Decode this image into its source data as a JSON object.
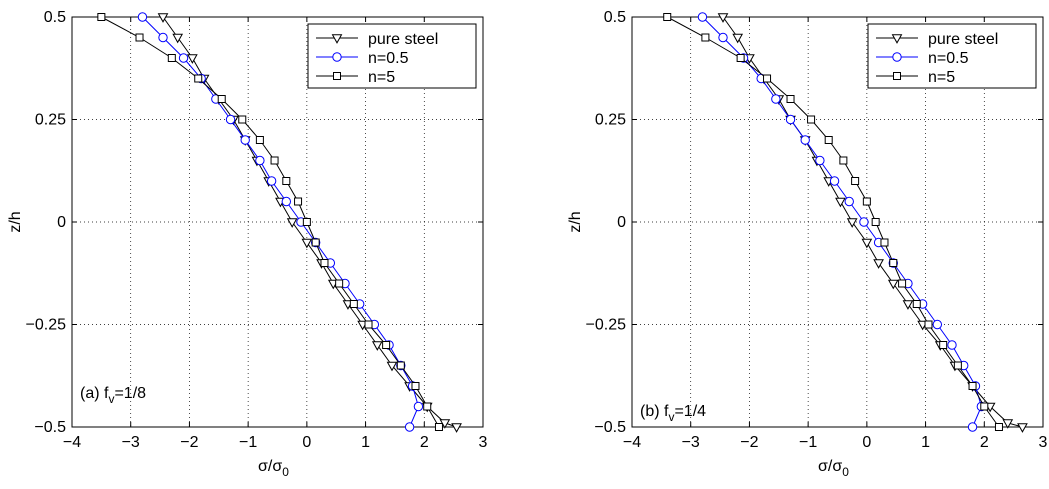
{
  "chart_data": [
    {
      "type": "line",
      "panel": "a",
      "annotation_main": "(a) f",
      "annotation_sub": "v",
      "annotation_tail": "=1/8",
      "xlabel_main": "σ/σ",
      "xlabel_sub": "0",
      "ylabel": "z/h",
      "xlim": [
        -4,
        3
      ],
      "ylim": [
        -0.5,
        0.5
      ],
      "xticks": [
        "−4",
        "−3",
        "−2",
        "−1",
        "0",
        "1",
        "2",
        "3"
      ],
      "yticks": [
        "−0.5",
        "−0.25",
        "0",
        "0.25",
        "0.5"
      ],
      "grid": true,
      "legend_position": "top-right",
      "series": [
        {
          "name": "pure steel",
          "marker": "triangle-down",
          "color": "#000000",
          "points": [
            [
              -2.45,
              0.5
            ],
            [
              -2.2,
              0.45
            ],
            [
              -1.95,
              0.4
            ],
            [
              -1.75,
              0.35
            ],
            [
              -1.5,
              0.3
            ],
            [
              -1.25,
              0.25
            ],
            [
              -1.05,
              0.2
            ],
            [
              -0.85,
              0.15
            ],
            [
              -0.65,
              0.1
            ],
            [
              -0.45,
              0.05
            ],
            [
              -0.25,
              0.0
            ],
            [
              0.0,
              -0.05
            ],
            [
              0.25,
              -0.1
            ],
            [
              0.45,
              -0.15
            ],
            [
              0.7,
              -0.2
            ],
            [
              0.95,
              -0.25
            ],
            [
              1.2,
              -0.3
            ],
            [
              1.45,
              -0.35
            ],
            [
              1.75,
              -0.4
            ],
            [
              2.05,
              -0.45
            ],
            [
              2.35,
              -0.49
            ],
            [
              2.55,
              -0.5
            ]
          ]
        },
        {
          "name": "n=0.5",
          "marker": "circle",
          "color": "#0000ff",
          "points": [
            [
              -2.8,
              0.5
            ],
            [
              -2.45,
              0.45
            ],
            [
              -2.1,
              0.4
            ],
            [
              -1.8,
              0.35
            ],
            [
              -1.55,
              0.3
            ],
            [
              -1.3,
              0.25
            ],
            [
              -1.05,
              0.2
            ],
            [
              -0.8,
              0.15
            ],
            [
              -0.6,
              0.1
            ],
            [
              -0.35,
              0.05
            ],
            [
              -0.1,
              0.0
            ],
            [
              0.15,
              -0.05
            ],
            [
              0.4,
              -0.1
            ],
            [
              0.65,
              -0.15
            ],
            [
              0.9,
              -0.2
            ],
            [
              1.15,
              -0.25
            ],
            [
              1.4,
              -0.3
            ],
            [
              1.6,
              -0.35
            ],
            [
              1.8,
              -0.4
            ],
            [
              1.9,
              -0.45
            ],
            [
              1.75,
              -0.5
            ]
          ]
        },
        {
          "name": "n=5",
          "marker": "square",
          "color": "#000000",
          "points": [
            [
              -3.5,
              0.5
            ],
            [
              -2.85,
              0.45
            ],
            [
              -2.3,
              0.4
            ],
            [
              -1.85,
              0.35
            ],
            [
              -1.45,
              0.3
            ],
            [
              -1.1,
              0.25
            ],
            [
              -0.8,
              0.2
            ],
            [
              -0.55,
              0.15
            ],
            [
              -0.35,
              0.1
            ],
            [
              -0.15,
              0.05
            ],
            [
              0.0,
              0.0
            ],
            [
              0.15,
              -0.05
            ],
            [
              0.3,
              -0.1
            ],
            [
              0.55,
              -0.15
            ],
            [
              0.8,
              -0.2
            ],
            [
              1.05,
              -0.25
            ],
            [
              1.35,
              -0.3
            ],
            [
              1.6,
              -0.35
            ],
            [
              1.85,
              -0.4
            ],
            [
              2.05,
              -0.45
            ],
            [
              2.25,
              -0.5
            ]
          ]
        }
      ]
    },
    {
      "type": "line",
      "panel": "b",
      "annotation_main": "(b) f",
      "annotation_sub": "v",
      "annotation_tail": "=1/4",
      "xlabel_main": "σ/σ",
      "xlabel_sub": "0",
      "ylabel": "z/h",
      "xlim": [
        -4,
        3
      ],
      "ylim": [
        -0.5,
        0.5
      ],
      "xticks": [
        "−4",
        "−3",
        "−2",
        "−1",
        "0",
        "1",
        "2",
        "3"
      ],
      "yticks": [
        "−0.5",
        "−0.25",
        "0",
        "0.25",
        "0.5"
      ],
      "grid": true,
      "legend_position": "top-right",
      "series": [
        {
          "name": "pure steel",
          "marker": "triangle-down",
          "color": "#000000",
          "points": [
            [
              -2.45,
              0.5
            ],
            [
              -2.2,
              0.45
            ],
            [
              -2.0,
              0.4
            ],
            [
              -1.75,
              0.35
            ],
            [
              -1.5,
              0.3
            ],
            [
              -1.3,
              0.25
            ],
            [
              -1.05,
              0.2
            ],
            [
              -0.85,
              0.15
            ],
            [
              -0.65,
              0.1
            ],
            [
              -0.45,
              0.05
            ],
            [
              -0.25,
              0.0
            ],
            [
              0.0,
              -0.05
            ],
            [
              0.2,
              -0.1
            ],
            [
              0.45,
              -0.15
            ],
            [
              0.7,
              -0.2
            ],
            [
              0.95,
              -0.25
            ],
            [
              1.25,
              -0.3
            ],
            [
              1.5,
              -0.35
            ],
            [
              1.8,
              -0.4
            ],
            [
              2.1,
              -0.45
            ],
            [
              2.4,
              -0.49
            ],
            [
              2.65,
              -0.5
            ]
          ]
        },
        {
          "name": "n=0.5",
          "marker": "circle",
          "color": "#0000ff",
          "points": [
            [
              -2.8,
              0.5
            ],
            [
              -2.45,
              0.45
            ],
            [
              -2.1,
              0.4
            ],
            [
              -1.8,
              0.35
            ],
            [
              -1.55,
              0.3
            ],
            [
              -1.3,
              0.25
            ],
            [
              -1.05,
              0.2
            ],
            [
              -0.8,
              0.15
            ],
            [
              -0.55,
              0.1
            ],
            [
              -0.3,
              0.05
            ],
            [
              -0.05,
              0.0
            ],
            [
              0.2,
              -0.05
            ],
            [
              0.45,
              -0.1
            ],
            [
              0.7,
              -0.15
            ],
            [
              0.95,
              -0.2
            ],
            [
              1.2,
              -0.25
            ],
            [
              1.45,
              -0.3
            ],
            [
              1.65,
              -0.35
            ],
            [
              1.85,
              -0.4
            ],
            [
              1.95,
              -0.45
            ],
            [
              1.8,
              -0.5
            ]
          ]
        },
        {
          "name": "n=5",
          "marker": "square",
          "color": "#000000",
          "points": [
            [
              -3.4,
              0.5
            ],
            [
              -2.75,
              0.45
            ],
            [
              -2.15,
              0.4
            ],
            [
              -1.7,
              0.35
            ],
            [
              -1.3,
              0.3
            ],
            [
              -0.95,
              0.25
            ],
            [
              -0.65,
              0.2
            ],
            [
              -0.4,
              0.15
            ],
            [
              -0.2,
              0.1
            ],
            [
              0.0,
              0.05
            ],
            [
              0.15,
              0.0
            ],
            [
              0.3,
              -0.05
            ],
            [
              0.45,
              -0.1
            ],
            [
              0.6,
              -0.15
            ],
            [
              0.85,
              -0.2
            ],
            [
              1.05,
              -0.25
            ],
            [
              1.3,
              -0.3
            ],
            [
              1.55,
              -0.35
            ],
            [
              1.8,
              -0.4
            ],
            [
              2.0,
              -0.45
            ],
            [
              2.25,
              -0.5
            ]
          ]
        }
      ]
    }
  ]
}
